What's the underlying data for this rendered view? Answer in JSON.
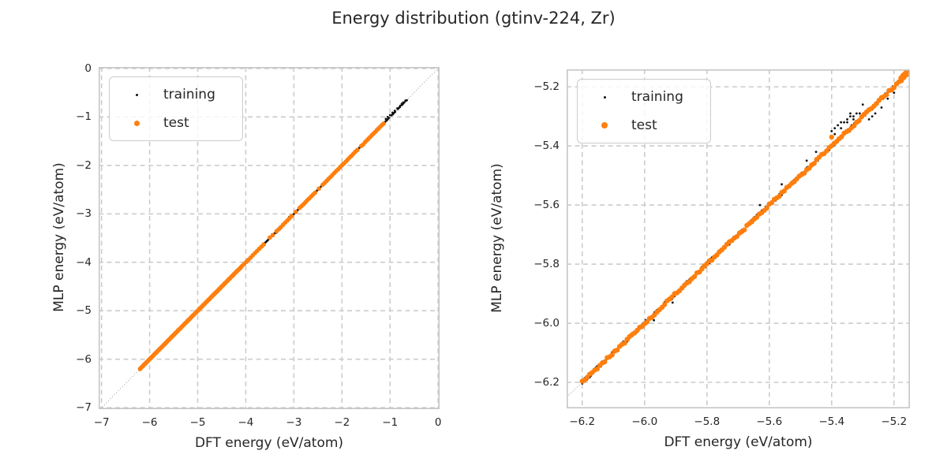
{
  "figure": {
    "title": "Energy distribution (gtinv-224, Zr)"
  },
  "colors": {
    "training": "#111111",
    "test": "#ff7f0e",
    "grid": "#cccccc",
    "spine": "#c6c6c6",
    "identity_line": "#9e9e9e",
    "text": "#262626",
    "background": "#ffffff"
  },
  "legend": {
    "entries": [
      {
        "label": "training",
        "series": "training"
      },
      {
        "label": "test",
        "series": "test"
      }
    ],
    "position": "upper-left"
  },
  "chart_data": [
    {
      "type": "scatter",
      "title": "",
      "xlabel": "DFT energy (eV/atom)",
      "ylabel": "MLP energy (eV/atom)",
      "xlim": [
        -7.06,
        0.03
      ],
      "ylim": [
        -7.03,
        0.03
      ],
      "xticks": [
        -7,
        -6,
        -5,
        -4,
        -3,
        -2,
        -1,
        0
      ],
      "xtick_labels": [
        "−7",
        "−6",
        "−5",
        "−4",
        "−3",
        "−2",
        "−1",
        "0"
      ],
      "yticks": [
        0,
        -1,
        -2,
        -3,
        -4,
        -5,
        -6,
        -7
      ],
      "ytick_labels": [
        "0",
        "−1",
        "−2",
        "−3",
        "−4",
        "−5",
        "−6",
        "−7"
      ],
      "grid": "dashed",
      "legend_position": "upper-left",
      "identity_line": true,
      "series": [
        {
          "name": "training",
          "color": "#111111",
          "marker_px": 1.3,
          "spread": 0.005,
          "diagonal_segments": [
            {
              "from": -6.2,
              "to": -1.14,
              "step": 0.012
            },
            {
              "from": -1.1,
              "to": -1.02,
              "step": 0.013
            },
            {
              "from": -0.97,
              "to": -0.88,
              "step": 0.013
            },
            {
              "from": -0.84,
              "to": -0.79,
              "step": 0.012
            },
            {
              "from": -0.76,
              "to": -0.7,
              "step": 0.012
            },
            {
              "from": -0.67,
              "to": -0.65,
              "step": 0.01
            }
          ],
          "points": [
            [
              -1.09,
              -1.04
            ],
            [
              -1.05,
              -1.0
            ],
            [
              -1.0,
              -0.96
            ],
            [
              -0.95,
              -0.91
            ],
            [
              -0.9,
              -0.87
            ],
            [
              -0.85,
              -0.82
            ],
            [
              -0.79,
              -0.77
            ],
            [
              -0.76,
              -0.73
            ],
            [
              -0.73,
              -0.7
            ],
            [
              -0.68,
              -0.66
            ],
            [
              -3.51,
              -3.47
            ],
            [
              -3.45,
              -3.42
            ],
            [
              -3.36,
              -3.39
            ],
            [
              -3.28,
              -3.31
            ],
            [
              -3.1,
              -3.06
            ],
            [
              -3.06,
              -3.03
            ],
            [
              -4.22,
              -4.19
            ],
            [
              -5.02,
              -5.0
            ]
          ]
        },
        {
          "name": "test",
          "color": "#ff7f0e",
          "marker_px": 2.8,
          "spread": 0.003,
          "diagonal_segments": [
            {
              "from": -6.2,
              "to": -4.1,
              "step": 0.016
            },
            {
              "from": -4.08,
              "to": -3.62,
              "step": 0.045
            },
            {
              "from": -3.36,
              "to": -3.02,
              "step": 0.045
            },
            {
              "from": -2.88,
              "to": -2.56,
              "step": 0.04
            },
            {
              "from": -2.4,
              "to": -1.68,
              "step": 0.04
            },
            {
              "from": -1.52,
              "to": -1.12,
              "step": 0.035
            }
          ],
          "points": [
            [
              -3.5,
              -3.49
            ],
            [
              -3.44,
              -3.44
            ],
            [
              -2.96,
              -2.96
            ],
            [
              -2.48,
              -2.48
            ],
            [
              -1.6,
              -1.6
            ],
            [
              -1.56,
              -1.57
            ]
          ]
        }
      ]
    },
    {
      "type": "scatter",
      "title": "",
      "xlabel": "DFT energy (eV/atom)",
      "ylabel": "MLP energy (eV/atom)",
      "xlim": [
        -6.25,
        -5.149
      ],
      "ylim": [
        -6.288,
        -5.141
      ],
      "xticks": [
        -6.2,
        -6.0,
        -5.8,
        -5.6,
        -5.4,
        -5.2
      ],
      "xtick_labels": [
        "−6.2",
        "−6.0",
        "−5.8",
        "−5.6",
        "−5.4",
        "−5.2"
      ],
      "yticks": [
        -5.2,
        -5.4,
        -5.6,
        -5.8,
        -6.0,
        -6.2
      ],
      "ytick_labels": [
        "−5.2",
        "−5.4",
        "−5.6",
        "−5.8",
        "−6.0",
        "−6.2"
      ],
      "grid": "dashed",
      "legend_position": "upper-left",
      "identity_line": true,
      "series": [
        {
          "name": "training",
          "color": "#111111",
          "marker_px": 1.4,
          "spread": 0.007,
          "diagonal_segments": [
            {
              "from": -6.2,
              "to": -5.158,
              "step": 0.004
            }
          ],
          "points": [
            [
              -5.4,
              -5.35
            ],
            [
              -5.39,
              -5.34
            ],
            [
              -5.38,
              -5.33
            ],
            [
              -5.37,
              -5.32
            ],
            [
              -5.36,
              -5.32
            ],
            [
              -5.35,
              -5.31
            ],
            [
              -5.34,
              -5.3
            ],
            [
              -5.33,
              -5.3
            ],
            [
              -5.32,
              -5.29
            ],
            [
              -5.37,
              -5.34
            ],
            [
              -5.35,
              -5.32
            ],
            [
              -5.39,
              -5.36
            ],
            [
              -5.31,
              -5.29
            ],
            [
              -5.33,
              -5.31
            ],
            [
              -5.34,
              -5.29
            ],
            [
              -5.3,
              -5.26
            ],
            [
              -5.28,
              -5.31
            ],
            [
              -5.26,
              -5.29
            ],
            [
              -5.24,
              -5.27
            ],
            [
              -5.27,
              -5.3
            ],
            [
              -5.22,
              -5.24
            ],
            [
              -5.2,
              -5.22
            ],
            [
              -5.97,
              -5.99
            ],
            [
              -5.91,
              -5.93
            ],
            [
              -5.63,
              -5.6
            ],
            [
              -5.56,
              -5.53
            ],
            [
              -5.48,
              -5.45
            ],
            [
              -5.45,
              -5.42
            ]
          ]
        },
        {
          "name": "test",
          "color": "#ff7f0e",
          "marker_px": 3.2,
          "spread": 0.004,
          "diagonal_segments": [
            {
              "from": -6.2,
              "to": -5.16,
              "step": 0.008
            }
          ],
          "points": [
            [
              -5.4,
              -5.37
            ],
            [
              -5.178,
              -5.17
            ],
            [
              -5.173,
              -5.164
            ],
            [
              -5.17,
              -5.16
            ],
            [
              -5.166,
              -5.158
            ],
            [
              -5.163,
              -5.153
            ],
            [
              -5.16,
              -5.15
            ],
            [
              -5.157,
              -5.149
            ],
            [
              -5.168,
              -5.161
            ],
            [
              -5.172,
              -5.166
            ],
            [
              -5.162,
              -5.156
            ],
            [
              -5.158,
              -5.152
            ],
            [
              -5.165,
              -5.156
            ]
          ]
        }
      ]
    }
  ]
}
